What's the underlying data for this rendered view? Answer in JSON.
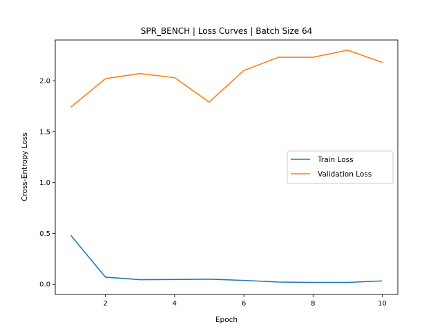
{
  "chart_data": {
    "type": "line",
    "title": "SPR_BENCH | Loss Curves | Batch Size 64",
    "xlabel": "Epoch",
    "ylabel": "Cross-Entropy Loss",
    "x": [
      1,
      2,
      3,
      4,
      5,
      6,
      7,
      8,
      9,
      10
    ],
    "xlim": [
      0.55,
      10.45
    ],
    "ylim": [
      -0.1,
      2.4
    ],
    "xticks": [
      2,
      4,
      6,
      8,
      10
    ],
    "yticks": [
      0.0,
      0.5,
      1.0,
      1.5,
      2.0
    ],
    "grid": false,
    "legend": "center-right",
    "series": [
      {
        "name": "Train Loss",
        "color": "#1f77b4",
        "values": [
          0.48,
          0.07,
          0.045,
          0.047,
          0.05,
          0.038,
          0.022,
          0.018,
          0.018,
          0.033
        ]
      },
      {
        "name": "Validation Loss",
        "color": "#ff7f0e",
        "values": [
          1.74,
          2.02,
          2.07,
          2.03,
          1.79,
          2.1,
          2.23,
          2.23,
          2.3,
          2.18
        ]
      }
    ]
  }
}
